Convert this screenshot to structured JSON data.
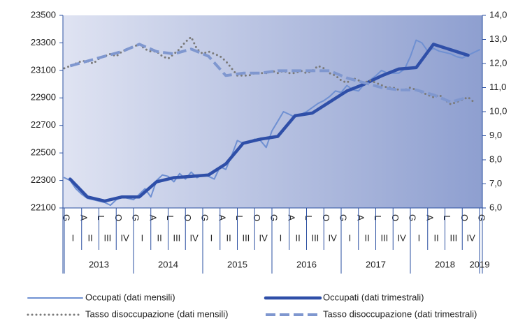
{
  "chart_data": {
    "type": "line",
    "months": [
      "G",
      null,
      null,
      "A",
      null,
      null,
      "L",
      null,
      null,
      "O",
      null,
      null,
      "G",
      null,
      null,
      "A",
      null,
      null,
      "L",
      null,
      null,
      "O",
      null,
      null,
      "G",
      null,
      null,
      "A",
      null,
      null,
      "L",
      null,
      null,
      "O",
      null,
      null,
      "G",
      null,
      null,
      "A",
      null,
      null,
      "L",
      null,
      null,
      "O",
      null,
      null,
      "G",
      null,
      null,
      "A",
      null,
      null,
      "L",
      null,
      null,
      "O",
      null,
      null,
      "G",
      null,
      null,
      "A",
      null,
      null,
      "L",
      null,
      null,
      "O",
      null,
      null,
      "G"
    ],
    "quarters": [
      "I",
      "II",
      "III",
      "IV",
      "I",
      "II",
      "III",
      "IV",
      "I",
      "II",
      "III",
      "IV",
      "I",
      "II",
      "III",
      "IV",
      "I",
      "II",
      "III",
      "IV",
      "I",
      "II",
      "III",
      "IV"
    ],
    "years": [
      "2013",
      "2014",
      "2015",
      "2016",
      "2017",
      "2018",
      "2019"
    ],
    "ylim": [
      22100,
      23500
    ],
    "yticks": [
      22100,
      22300,
      22500,
      22700,
      22900,
      23100,
      23300,
      23500
    ],
    "y2lim": [
      6,
      14
    ],
    "y2ticks": [
      {
        "value": 6,
        "label": "6,0"
      },
      {
        "value": 7,
        "label": "7,0"
      },
      {
        "value": 8,
        "label": "8,0"
      },
      {
        "value": 9,
        "label": "9,0"
      },
      {
        "value": 10,
        "label": "10,0"
      },
      {
        "value": 11,
        "label": "11,0"
      },
      {
        "value": 12,
        "label": "12,0"
      },
      {
        "value": 13,
        "label": "13,0"
      },
      {
        "value": 14,
        "label": "14,0"
      }
    ],
    "series": [
      {
        "name": "Occupati (dati mensili)",
        "color": "#6f90d2",
        "style": "thin",
        "values": [
          22320,
          22300,
          22240,
          22200,
          22170,
          22160,
          22150,
          22140,
          22120,
          22160,
          22180,
          22170,
          22160,
          22200,
          22240,
          22180,
          22300,
          22340,
          22330,
          22290,
          22350,
          22310,
          22360,
          22320,
          22340,
          22330,
          22310,
          22400,
          22380,
          22480,
          22590,
          22570,
          22580,
          22600,
          22590,
          22540,
          22660,
          22730,
          22800,
          22780,
          22760,
          22780,
          22800,
          22830,
          22860,
          22880,
          22910,
          22950,
          22940,
          22990,
          22960,
          22950,
          23000,
          23030,
          23060,
          23100,
          23080,
          23080,
          23080,
          23110,
          23200,
          23320,
          23300,
          23240,
          23260,
          23240,
          23230,
          23220,
          23200,
          23190,
          23210,
          23230,
          23250
        ]
      },
      {
        "name": "Occupati (dati trimestrali)",
        "color": "#2f4fa8",
        "style": "thick",
        "values": [
          22310,
          22180,
          22150,
          22180,
          22180,
          22290,
          22320,
          22330,
          22340,
          22420,
          22570,
          22600,
          22620,
          22770,
          22790,
          22870,
          22950,
          23000,
          23060,
          23110,
          23120,
          23290,
          23250,
          23210
        ]
      },
      {
        "name": "Tasso disoccupazione (dati mensili)",
        "color": "#7a7a7a",
        "style": "dotted",
        "axis": "y2",
        "values": [
          11.8,
          11.9,
          12.0,
          12.1,
          12.1,
          12.0,
          12.2,
          12.3,
          12.4,
          12.3,
          12.5,
          12.6,
          12.7,
          12.8,
          12.6,
          12.5,
          12.5,
          12.3,
          12.2,
          12.4,
          12.6,
          12.9,
          13.1,
          12.6,
          12.4,
          12.5,
          12.4,
          12.3,
          12.1,
          11.8,
          11.5,
          11.5,
          11.5,
          11.6,
          11.6,
          11.6,
          11.7,
          11.6,
          11.7,
          11.6,
          11.6,
          11.7,
          11.6,
          11.7,
          11.9,
          11.8,
          11.6,
          11.5,
          11.3,
          11.2,
          11.4,
          11.3,
          11.2,
          11.3,
          11.2,
          11.1,
          11.0,
          11.0,
          10.9,
          10.9,
          11.0,
          10.9,
          10.8,
          10.7,
          10.6,
          10.7,
          10.5,
          10.3,
          10.4,
          10.5,
          10.6,
          10.4,
          null
        ]
      },
      {
        "name": "Tasso disoccupazione (dati trimestrali)",
        "color": "#7f97cf",
        "style": "dashed",
        "axis": "y2",
        "values": [
          11.9,
          12.1,
          12.3,
          12.5,
          12.8,
          12.5,
          12.4,
          12.6,
          12.3,
          11.5,
          11.6,
          11.6,
          11.7,
          11.7,
          11.7,
          11.7,
          11.4,
          11.2,
          11.0,
          10.9,
          10.9,
          10.7,
          10.4,
          10.6
        ]
      }
    ]
  }
}
